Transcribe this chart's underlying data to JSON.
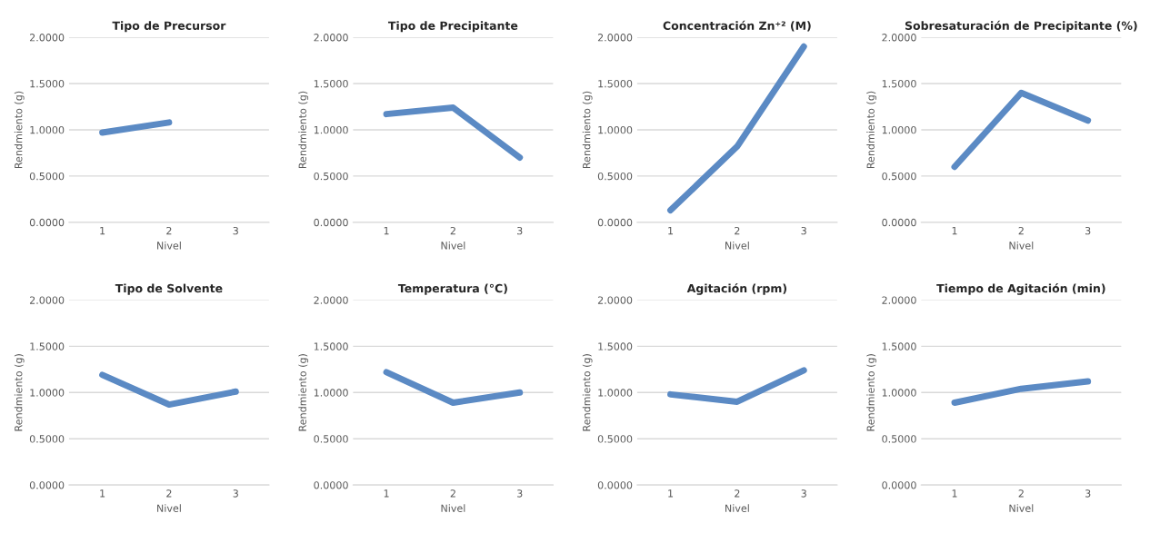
{
  "chart_data": [
    {
      "type": "line",
      "title": "Tipo de Precursor",
      "xlabel": "Nivel",
      "ylabel": "Rendmiento (g)",
      "categories": [
        "1",
        "2",
        "3"
      ],
      "series": [
        {
          "color": "#5b8ac4",
          "values": [
            0.97,
            1.08,
            null
          ]
        }
      ],
      "ylim": [
        0,
        2
      ],
      "yticks": [
        {
          "value": 0,
          "label": "0.0000"
        },
        {
          "value": 0.5,
          "label": "0.5000"
        },
        {
          "value": 1,
          "label": "1.0000"
        },
        {
          "value": 1.5,
          "label": "1.5000"
        },
        {
          "value": 2,
          "label": "2.0000"
        }
      ],
      "grid": "y",
      "legend": false
    },
    {
      "type": "line",
      "title": "Tipo de Precipitante",
      "xlabel": "Nivel",
      "ylabel": "Rendmiento (g)",
      "categories": [
        "1",
        "2",
        "3"
      ],
      "series": [
        {
          "color": "#5b8ac4",
          "values": [
            1.17,
            1.24,
            0.7
          ]
        }
      ],
      "ylim": [
        0,
        2
      ],
      "yticks": [
        {
          "value": 0,
          "label": "0.0000"
        },
        {
          "value": 0.5,
          "label": "0.5000"
        },
        {
          "value": 1,
          "label": "1.0000"
        },
        {
          "value": 1.5,
          "label": "1.5000"
        },
        {
          "value": 2,
          "label": "2.0000"
        }
      ],
      "grid": "y",
      "legend": false
    },
    {
      "type": "line",
      "title": "Concentración Zn⁺² (M)",
      "xlabel": "Nivel",
      "ylabel": "Rendmiento (g)",
      "categories": [
        "1",
        "2",
        "3"
      ],
      "series": [
        {
          "color": "#5b8ac4",
          "values": [
            0.13,
            0.82,
            1.9
          ]
        }
      ],
      "ylim": [
        0,
        2
      ],
      "yticks": [
        {
          "value": 0,
          "label": "0.0000"
        },
        {
          "value": 0.5,
          "label": "0.5000"
        },
        {
          "value": 1,
          "label": "1.0000"
        },
        {
          "value": 1.5,
          "label": "1.5000"
        },
        {
          "value": 2,
          "label": "2.0000"
        }
      ],
      "grid": "y",
      "legend": false
    },
    {
      "type": "line",
      "title": "Sobresaturación de Precipitante (%)",
      "xlabel": "Nivel",
      "ylabel": "Rendmiento (g)",
      "categories": [
        "1",
        "2",
        "3"
      ],
      "series": [
        {
          "color": "#5b8ac4",
          "values": [
            0.6,
            1.4,
            1.1
          ]
        }
      ],
      "ylim": [
        0,
        2
      ],
      "yticks": [
        {
          "value": 0,
          "label": "0.0000"
        },
        {
          "value": 0.5,
          "label": "0.5000"
        },
        {
          "value": 1,
          "label": "1.0000"
        },
        {
          "value": 1.5,
          "label": "1.5000"
        },
        {
          "value": 2,
          "label": "2.0000"
        }
      ],
      "grid": "y",
      "legend": false
    },
    {
      "type": "line",
      "title": "Tipo de Solvente",
      "xlabel": "Nivel",
      "ylabel": "Rendmiento (g)",
      "categories": [
        "1",
        "2",
        "3"
      ],
      "series": [
        {
          "color": "#5b8ac4",
          "values": [
            1.19,
            0.87,
            1.01
          ]
        }
      ],
      "ylim": [
        0,
        2
      ],
      "yticks": [
        {
          "value": 0,
          "label": "0.0000"
        },
        {
          "value": 0.5,
          "label": "0.5000"
        },
        {
          "value": 1,
          "label": "1.0000"
        },
        {
          "value": 1.5,
          "label": "1.5000"
        },
        {
          "value": 2,
          "label": "2.0000"
        }
      ],
      "grid": "y",
      "legend": false
    },
    {
      "type": "line",
      "title": "Temperatura (°C)",
      "xlabel": "Nivel",
      "ylabel": "Rendmiento (g)",
      "categories": [
        "1",
        "2",
        "3"
      ],
      "series": [
        {
          "color": "#5b8ac4",
          "values": [
            1.22,
            0.89,
            1.0
          ]
        }
      ],
      "ylim": [
        0,
        2
      ],
      "yticks": [
        {
          "value": 0,
          "label": "0.0000"
        },
        {
          "value": 0.5,
          "label": "0.5000"
        },
        {
          "value": 1,
          "label": "1.0000"
        },
        {
          "value": 1.5,
          "label": "1.5000"
        },
        {
          "value": 2,
          "label": "2.0000"
        }
      ],
      "grid": "y",
      "legend": false
    },
    {
      "type": "line",
      "title": "Agitación (rpm)",
      "xlabel": "Nivel",
      "ylabel": "Rendmiento (g)",
      "categories": [
        "1",
        "2",
        "3"
      ],
      "series": [
        {
          "color": "#5b8ac4",
          "values": [
            0.98,
            0.9,
            1.24
          ]
        }
      ],
      "ylim": [
        0,
        2
      ],
      "yticks": [
        {
          "value": 0,
          "label": "0.0000"
        },
        {
          "value": 0.5,
          "label": "0.5000"
        },
        {
          "value": 1,
          "label": "1.0000"
        },
        {
          "value": 1.5,
          "label": "1.5000"
        },
        {
          "value": 2,
          "label": "2.0000"
        }
      ],
      "grid": "y",
      "legend": false
    },
    {
      "type": "line",
      "title": "Tiempo de Agitación (min)",
      "xlabel": "Nivel",
      "ylabel": "Rendmiento (g)",
      "categories": [
        "1",
        "2",
        "3"
      ],
      "series": [
        {
          "color": "#5b8ac4",
          "values": [
            0.89,
            1.04,
            1.12
          ]
        }
      ],
      "ylim": [
        0,
        2
      ],
      "yticks": [
        {
          "value": 0,
          "label": "0.0000"
        },
        {
          "value": 0.5,
          "label": "0.5000"
        },
        {
          "value": 1,
          "label": "1.0000"
        },
        {
          "value": 1.5,
          "label": "1.5000"
        },
        {
          "value": 2,
          "label": "2.0000"
        }
      ],
      "grid": "y",
      "legend": false
    }
  ]
}
